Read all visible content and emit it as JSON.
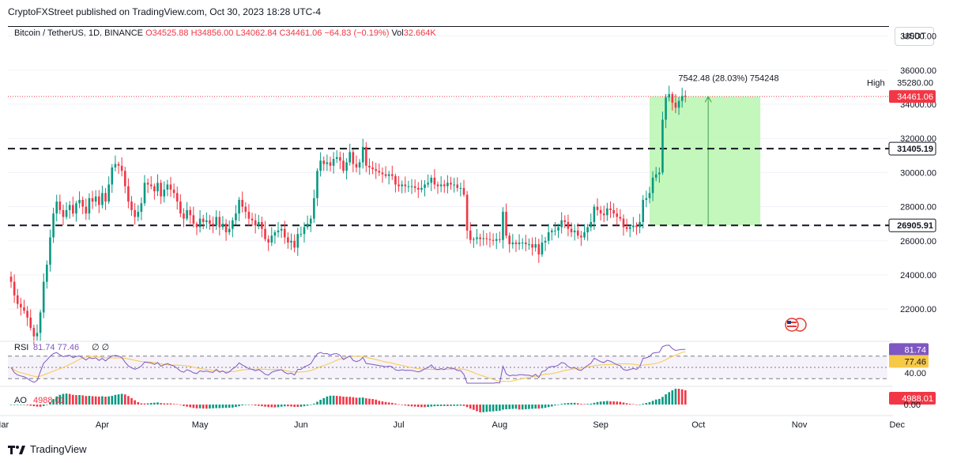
{
  "header": {
    "publisher": "CryptoFXStreet published on TradingView.com, Oct 30, 2023 18:28 UTC-4",
    "symbol": "Bitcoin / TetherUS, 1D, BINANCE",
    "open": "O34525.88",
    "high": "H34856.00",
    "low": "L34062.84",
    "close": "C34461.06",
    "change": "−64.83 (−0.19%)",
    "volume_label": "Vol",
    "volume": "32.664K",
    "currency_button": "USDT",
    "footer_brand": "TradingView"
  },
  "colors": {
    "up": "#089981",
    "down": "#f23645",
    "rsi_line": "#7e57c2",
    "rsi_ma": "#f7c948",
    "measure_fill": "#b9f6b0",
    "measure_line": "#43a047"
  },
  "chart_data": [
    {
      "type": "candlestick",
      "ylim": [
        20200,
        37800
      ],
      "y_ticks": [
        "22000.00",
        "24000.00",
        "26000.00",
        "28000.00",
        "30000.00",
        "32000.00",
        "34000.00",
        "36000.00",
        "38000.00"
      ],
      "x_ticks": [
        "Mar",
        "Apr",
        "May",
        "Jun",
        "Jul",
        "Aug",
        "Sep",
        "Oct",
        "Nov",
        "Dec"
      ],
      "current_price": "34461.06",
      "high_label": "High",
      "high_value": "35280.00",
      "levels": [
        {
          "value": 31405.19,
          "label": "31405.19"
        },
        {
          "value": 26905.91,
          "label": "26905.91"
        }
      ],
      "measure": {
        "text": "7542.48 (28.03%) 754248",
        "from": 26905.91,
        "to": 34448.39
      },
      "closes": [
        23600,
        22800,
        22300,
        22100,
        21900,
        21500,
        20900,
        20400,
        20600,
        21800,
        23600,
        24600,
        26200,
        27600,
        28300,
        27800,
        27400,
        27800,
        28100,
        27600,
        28200,
        28400,
        28000,
        27600,
        28500,
        28300,
        28600,
        28100,
        28800,
        28300,
        29300,
        30300,
        30500,
        30400,
        30100,
        29200,
        28300,
        27800,
        27400,
        27700,
        28200,
        29400,
        29300,
        29200,
        28900,
        29400,
        28600,
        29000,
        29300,
        29000,
        28800,
        28300,
        27600,
        27300,
        27800,
        27500,
        27000,
        26800,
        27300,
        27100,
        27200,
        27000,
        26900,
        27400,
        26800,
        27000,
        26500,
        26700,
        27200,
        27600,
        28400,
        28000,
        27700,
        27300,
        27200,
        26900,
        27100,
        26700,
        26100,
        25900,
        26300,
        26500,
        26600,
        26700,
        26200,
        25900,
        26000,
        25600,
        26400,
        26400,
        26800,
        27000,
        27300,
        28500,
        30100,
        30700,
        30500,
        30600,
        30400,
        30800,
        30900,
        30700,
        30100,
        30600,
        31200,
        30500,
        30300,
        30600,
        31500,
        30400,
        30300,
        30200,
        30100,
        30000,
        29900,
        29800,
        29900,
        29800,
        29300,
        29200,
        29300,
        29200,
        29200,
        29200,
        29100,
        29000,
        29100,
        29300,
        29400,
        29700,
        29300,
        29200,
        29300,
        29200,
        29400,
        29300,
        29300,
        29100,
        29100,
        28700,
        26600,
        26050,
        26100,
        26200,
        26100,
        26150,
        26100,
        26050,
        26000,
        26100,
        26050,
        27700,
        26300,
        25800,
        25900,
        25800,
        25900,
        25900,
        25800,
        25800,
        25600,
        25800,
        25200,
        25900,
        26000,
        26500,
        26600,
        26600,
        26800,
        27200,
        27100,
        26700,
        26500,
        26600,
        26300,
        26200,
        26500,
        26800,
        27100,
        28000,
        27800,
        27600,
        27500,
        27900,
        27800,
        27600,
        27400,
        27300,
        26800,
        26700,
        26800,
        26900,
        26800,
        27100,
        28400,
        28500,
        28800,
        29700,
        29900,
        30000,
        33100,
        34400,
        34600,
        34100,
        33800,
        34200,
        34500,
        34461
      ]
    },
    {
      "type": "line",
      "name": "RSI",
      "label_values": "81.74  77.46",
      "label_nan": "∅  ∅",
      "current": "81.74",
      "ma_current": "77.46",
      "mid_tick": "40.00",
      "levels": [
        70,
        50,
        30
      ],
      "ylim": [
        22,
        92
      ]
    },
    {
      "type": "bar",
      "name": "AO",
      "label_value": "4988.01",
      "current": "4988.01",
      "zero_tick": "0.00"
    }
  ]
}
